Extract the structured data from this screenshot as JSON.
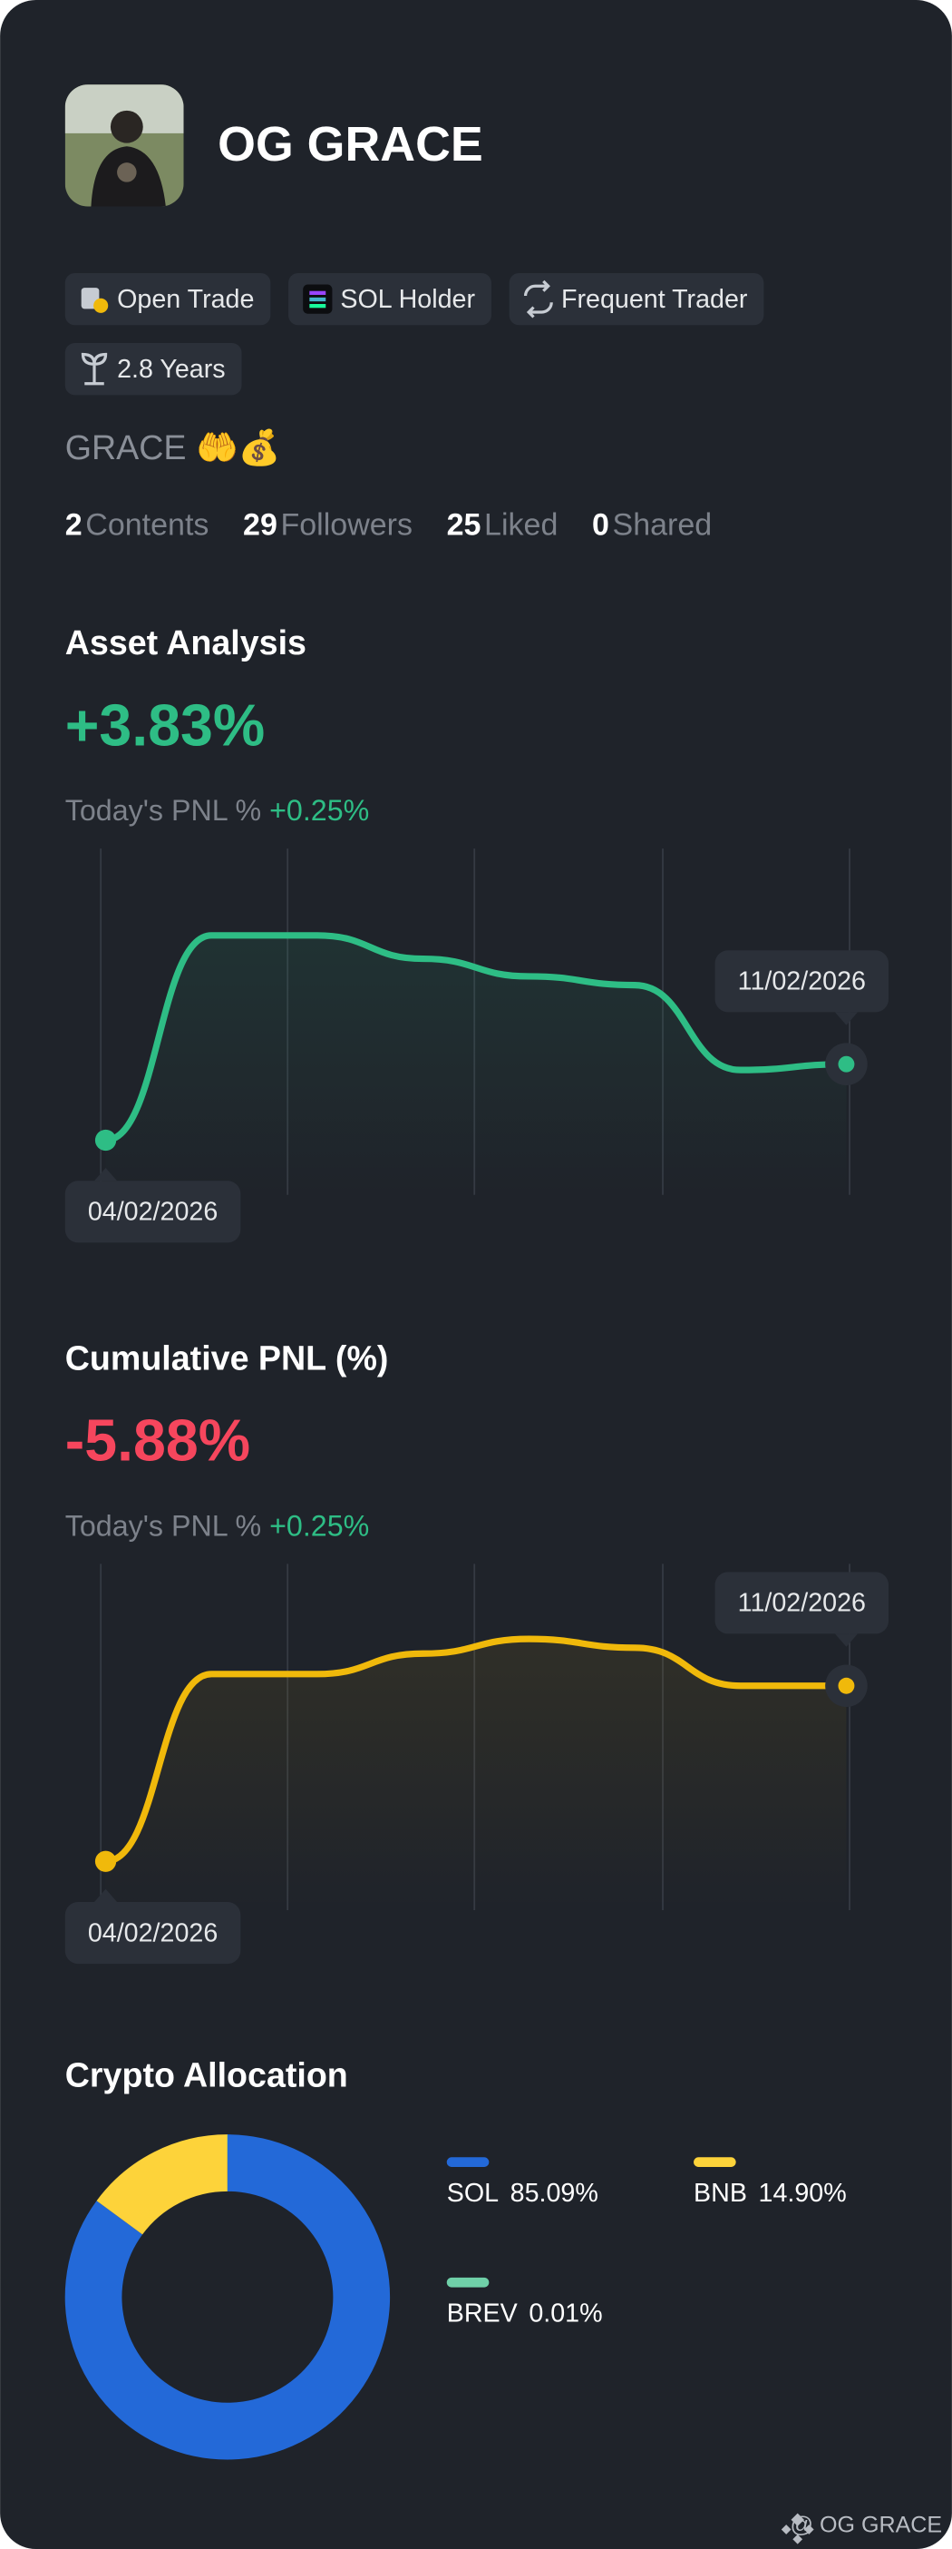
{
  "profile": {
    "name": "OG GRACE",
    "badges": [
      "Open Trade",
      "SOL Holder",
      "Frequent Trader",
      "2.8 Years"
    ],
    "bio": "GRACE 🤲💰",
    "stats": [
      {
        "value": "2",
        "label": "Contents"
      },
      {
        "value": "29",
        "label": "Followers"
      },
      {
        "value": "25",
        "label": "Liked"
      },
      {
        "value": "0",
        "label": "Shared"
      }
    ]
  },
  "chart_data": [
    {
      "type": "line",
      "title": "Asset Analysis",
      "headline": "+3.83%",
      "headline_color": "#2ebd85",
      "pnl_label": "Today's PNL %",
      "pnl_value": "+0.25%",
      "categories": [
        "04/02/2026",
        null,
        null,
        null,
        null,
        null,
        null,
        "11/02/2026"
      ],
      "series": [
        {
          "color": "#2ebd85",
          "values": [
            12,
            82,
            82,
            74,
            68,
            65,
            36,
            38
          ]
        }
      ],
      "ylim": [
        0,
        100
      ],
      "grid": true
    },
    {
      "type": "line",
      "title": "Cumulative PNL (%)",
      "headline": "-5.88%",
      "headline_color": "#f6465d",
      "pnl_label": "Today's PNL %",
      "pnl_value": "+0.25%",
      "categories": [
        "04/02/2026",
        null,
        null,
        null,
        null,
        null,
        null,
        "11/02/2026"
      ],
      "series": [
        {
          "color": "#f0b90b",
          "values": [
            10,
            74,
            74,
            81,
            86,
            83,
            70,
            70
          ]
        }
      ],
      "ylim": [
        0,
        100
      ],
      "grid": true
    },
    {
      "type": "pie",
      "title": "Crypto Allocation",
      "categories": [
        "SOL",
        "BNB",
        "BREV"
      ],
      "values": [
        85.09,
        14.9,
        0.01
      ],
      "value_labels": [
        "85.09%",
        "14.90%",
        "0.01%"
      ],
      "colors": [
        "#2369d8",
        "#fdd33a",
        "#6fd0a8"
      ]
    }
  ],
  "footer": "@ OG GRACE"
}
